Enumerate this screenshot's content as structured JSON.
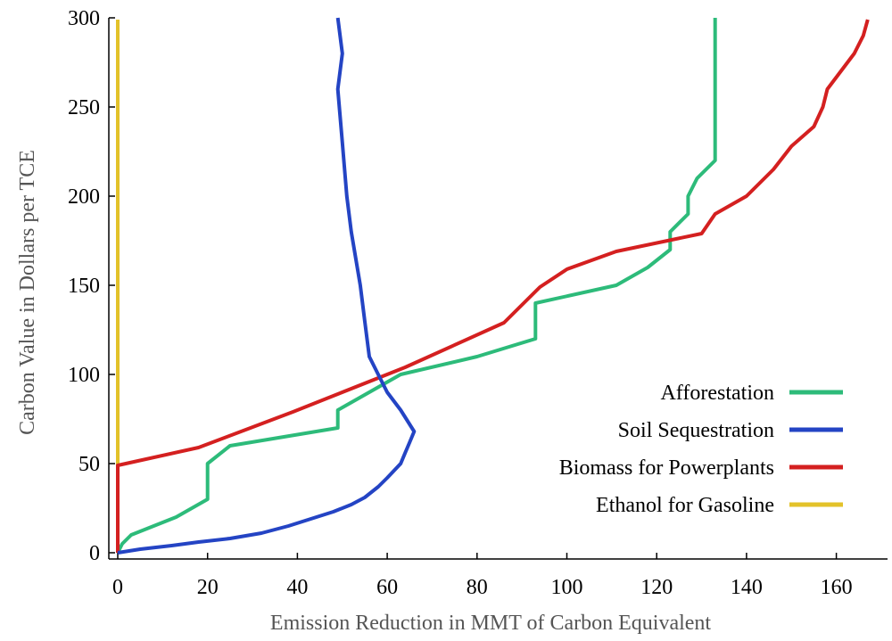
{
  "chart_data": {
    "type": "line",
    "title": "",
    "xlabel": "Emission Reduction in MMT of Carbon Equivalent",
    "ylabel": "Carbon Value in Dollars per TCE",
    "xlim": [
      0,
      170
    ],
    "ylim": [
      0,
      300
    ],
    "x_ticks": [
      0,
      20,
      40,
      60,
      80,
      100,
      120,
      140,
      160
    ],
    "y_ticks": [
      0,
      50,
      100,
      150,
      200,
      250,
      300
    ],
    "grid": false,
    "legend_position": "bottom-right",
    "series": [
      {
        "name": "Afforestation",
        "color": "#2dbb7a",
        "points": [
          [
            0,
            0
          ],
          [
            1,
            5
          ],
          [
            3,
            10
          ],
          [
            13,
            20
          ],
          [
            20,
            30
          ],
          [
            20,
            50
          ],
          [
            25,
            60
          ],
          [
            49,
            70
          ],
          [
            49,
            80
          ],
          [
            63,
            100
          ],
          [
            80,
            110
          ],
          [
            93,
            120
          ],
          [
            93,
            140
          ],
          [
            111,
            150
          ],
          [
            118,
            160
          ],
          [
            123,
            170
          ],
          [
            123,
            180
          ],
          [
            127,
            190
          ],
          [
            127,
            200
          ],
          [
            129,
            210
          ],
          [
            133,
            220
          ],
          [
            133,
            300
          ]
        ]
      },
      {
        "name": "Soil Sequestration",
        "color": "#2444c4",
        "points": [
          [
            0,
            0
          ],
          [
            5,
            2
          ],
          [
            12,
            4
          ],
          [
            18,
            6
          ],
          [
            25,
            8
          ],
          [
            32,
            11
          ],
          [
            38,
            15
          ],
          [
            43,
            19
          ],
          [
            48,
            23
          ],
          [
            52,
            27
          ],
          [
            55,
            31
          ],
          [
            58,
            37
          ],
          [
            60,
            42
          ],
          [
            63,
            50
          ],
          [
            64,
            56
          ],
          [
            65,
            62
          ],
          [
            66,
            68
          ],
          [
            63,
            80
          ],
          [
            60,
            90
          ],
          [
            58,
            100
          ],
          [
            56,
            110
          ],
          [
            55,
            130
          ],
          [
            54,
            150
          ],
          [
            52,
            180
          ],
          [
            51,
            200
          ],
          [
            50,
            230
          ],
          [
            49,
            260
          ],
          [
            50,
            280
          ],
          [
            49,
            300
          ]
        ]
      },
      {
        "name": "Biomass for Powerplants",
        "color": "#d42020",
        "points": [
          [
            0,
            0
          ],
          [
            0,
            49
          ],
          [
            18,
            59
          ],
          [
            39,
            79
          ],
          [
            49,
            89
          ],
          [
            64,
            104
          ],
          [
            86,
            129
          ],
          [
            94,
            149
          ],
          [
            100,
            159
          ],
          [
            111,
            169
          ],
          [
            130,
            179
          ],
          [
            133,
            190
          ],
          [
            140,
            200
          ],
          [
            146,
            215
          ],
          [
            150,
            228
          ],
          [
            155,
            239
          ],
          [
            157,
            250
          ],
          [
            158,
            260
          ],
          [
            161,
            270
          ],
          [
            164,
            280
          ],
          [
            166,
            290
          ],
          [
            167,
            299
          ]
        ]
      },
      {
        "name": "Ethanol for Gasoline",
        "color": "#e3c22a",
        "points": [
          [
            0,
            0
          ],
          [
            0,
            299
          ]
        ]
      }
    ]
  }
}
